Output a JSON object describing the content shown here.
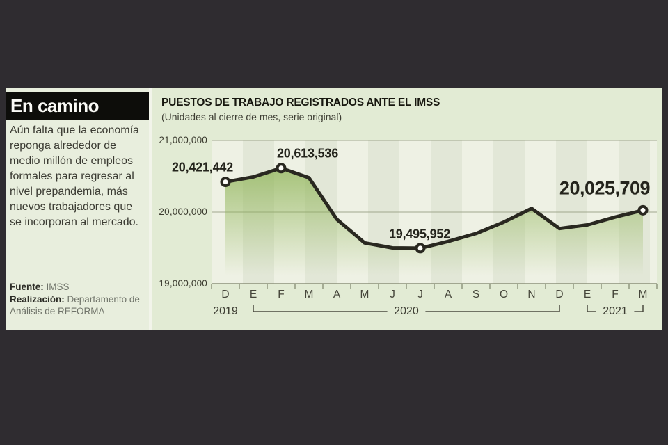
{
  "window": {
    "bg": "#2f2c30"
  },
  "sidebar": {
    "title": "En camino",
    "paragraph": "Aún falta que la economía reponga alrededor de medio millón de empleos formales para regresar al nivel prepandemia, más nuevos trabajadores que se incorporan al mercado.",
    "source_label": "Fuente:",
    "source_value": "IMSS",
    "credit_label": "Realización:",
    "credit_value": "Departamento de Análisis de REFORMA"
  },
  "chart": {
    "title": "PUESTOS DE TRABAJO REGISTRADOS ANTE EL IMSS",
    "subtitle": "(Unidades al cierre de mes, serie original)"
  },
  "chart_data": {
    "type": "line",
    "title": "PUESTOS DE TRABAJO REGISTRADOS ANTE EL IMSS",
    "subtitle": "(Unidades al cierre de mes, serie original)",
    "x_labels": [
      "D",
      "E",
      "F",
      "M",
      "A",
      "M",
      "J",
      "J",
      "A",
      "S",
      "O",
      "N",
      "D",
      "E",
      "F",
      "M"
    ],
    "year_groups": [
      {
        "label": "2019",
        "from": 0,
        "to": 0,
        "bracket": false
      },
      {
        "label": "2020",
        "from": 1,
        "to": 12,
        "bracket": true
      },
      {
        "label": "2021",
        "from": 13,
        "to": 15,
        "bracket": true
      }
    ],
    "values": [
      20421442,
      20490000,
      20613536,
      20480000,
      19900000,
      19570000,
      19500000,
      19495952,
      19590000,
      19700000,
      19860000,
      20050000,
      19770000,
      19820000,
      19930000,
      20025709
    ],
    "labeled_points": [
      {
        "index": 0,
        "text": "20,421,442",
        "big": false
      },
      {
        "index": 2,
        "text": "20,613,536",
        "big": false
      },
      {
        "index": 7,
        "text": "19,495,952",
        "big": false
      },
      {
        "index": 15,
        "text": "20,025,709",
        "big": true
      }
    ],
    "ylim": [
      19000000,
      21000000
    ],
    "y_ticks": [
      {
        "value": 21000000,
        "label": "21,000,000"
      },
      {
        "value": 20000000,
        "label": "20,000,000"
      },
      {
        "value": 19000000,
        "label": "19,000,000"
      }
    ],
    "grid": "horizontal",
    "legend": "none",
    "colors": {
      "line": "#292820",
      "area_green": "#8fb457",
      "marker_fill": "#fdfdf9",
      "stripe_light": "#eef1e4",
      "stripe_dark": "#e2e7d7",
      "gridline": "#a0a78e",
      "axis": "#8b9179",
      "bracket": "#4a4a3e"
    }
  }
}
